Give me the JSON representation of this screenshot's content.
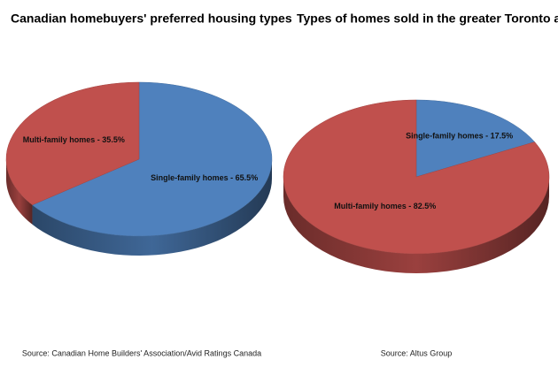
{
  "chart_data": [
    {
      "type": "pie",
      "title": "Canadian homebuyers' preferred housing types",
      "values": [
        65.5,
        35.5
      ],
      "value_labels": [
        "Single-family homes - 65.5%",
        "Multi-family homes - 35.5%"
      ],
      "colors": [
        "#4f81bd",
        "#c0504d"
      ],
      "source": "Source: Canadian Home Builders' Association/Avid Ratings Canada"
    },
    {
      "type": "pie",
      "title": "Types of homes sold in the greater Toronto area",
      "values": [
        17.5,
        82.5
      ],
      "value_labels": [
        "Single-family homes - 17.5%",
        "Multi-family homes - 82.5%"
      ],
      "colors": [
        "#4f81bd",
        "#c0504d"
      ],
      "source": "Source: Altus Group"
    }
  ]
}
